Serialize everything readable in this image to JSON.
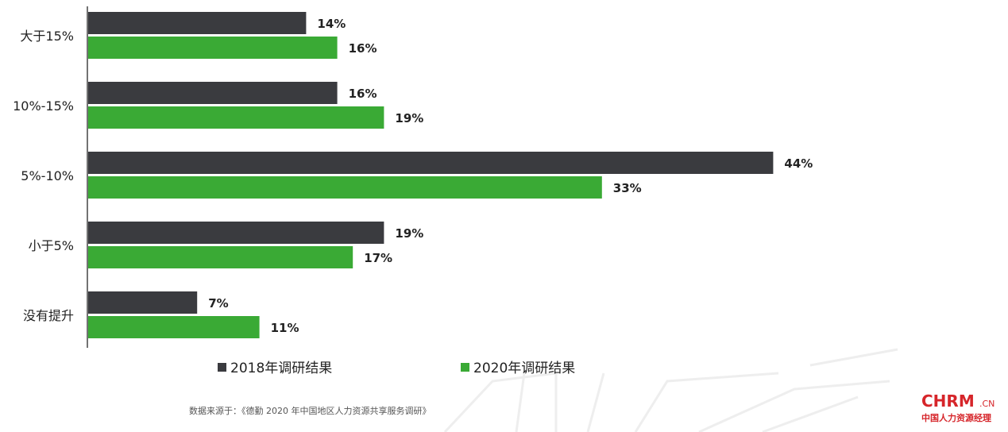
{
  "chart_data": {
    "type": "bar",
    "orientation": "horizontal",
    "categories": [
      "大于15%",
      "10%-15%",
      "5%-10%",
      "小于5%",
      "没有提升"
    ],
    "series": [
      {
        "name": "2018年调研结果",
        "values": [
          14,
          16,
          44,
          19,
          7
        ],
        "labels": [
          "14%",
          "16%",
          "44%",
          "19%",
          "7%"
        ],
        "color": "#3a3b3f"
      },
      {
        "name": "2020年调研结果",
        "values": [
          16,
          19,
          33,
          17,
          11
        ],
        "labels": [
          "16%",
          "19%",
          "33%",
          "17%",
          "11%"
        ],
        "color": "#3aaa35"
      }
    ],
    "xlim": [
      0,
      50
    ],
    "grid": false,
    "legend_position": "bottom"
  },
  "source": "数据来源于：《德勤 2020 年中国地区人力资源共享服务调研》",
  "logo": {
    "main": "CHRM",
    "suffix": ".CN",
    "subtitle": "中国人力资源经理"
  }
}
